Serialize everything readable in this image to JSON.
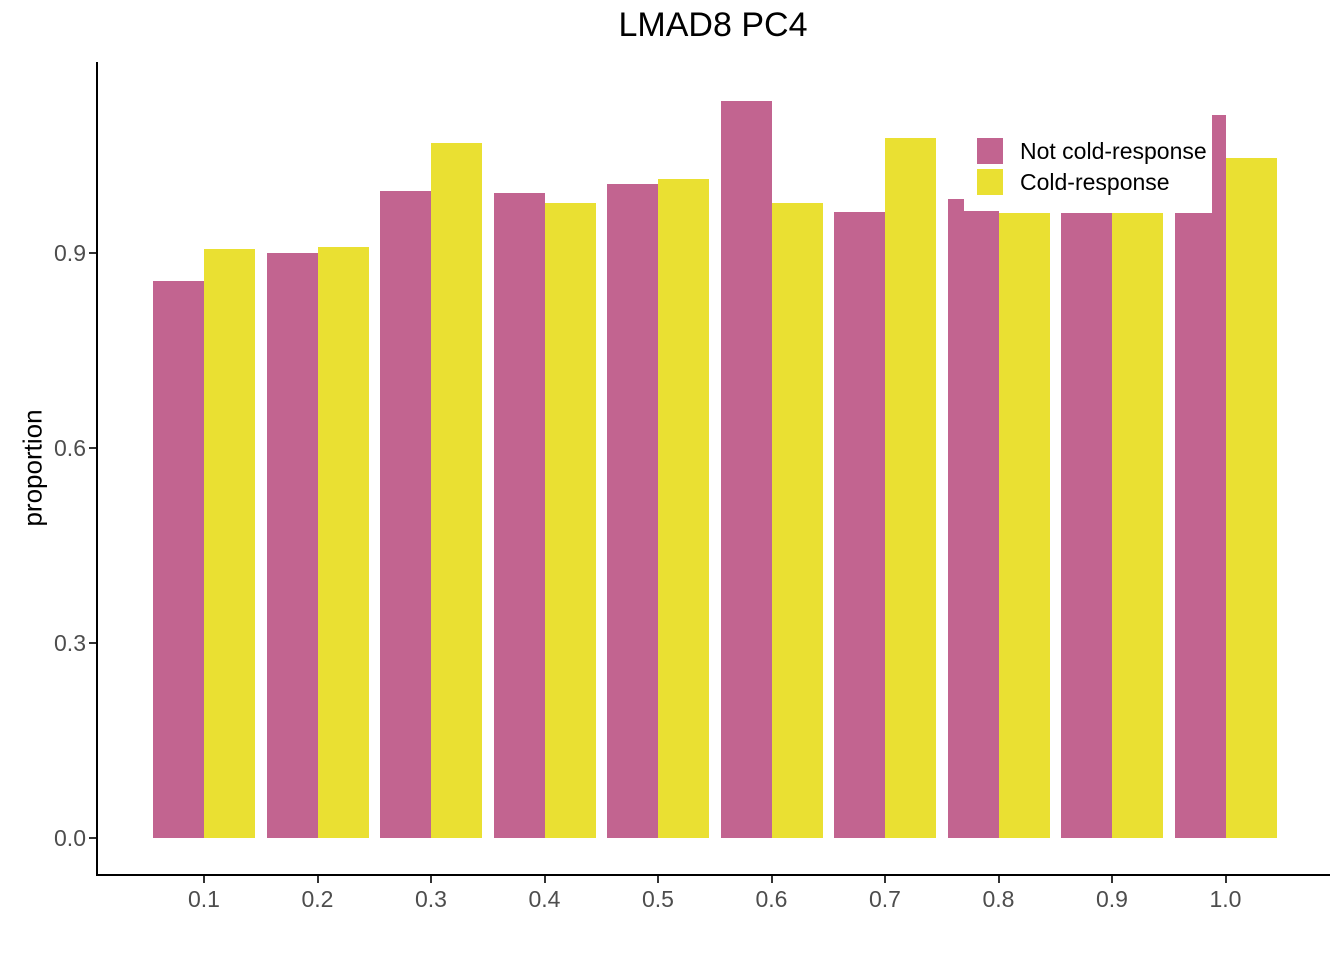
{
  "chart_data": {
    "type": "bar",
    "title": "LMAD8 PC4",
    "xlabel": "",
    "ylabel": "proportion",
    "categories": [
      "0.1",
      "0.2",
      "0.3",
      "0.4",
      "0.5",
      "0.6",
      "0.7",
      "0.8",
      "0.9",
      "1.0"
    ],
    "series": [
      {
        "name": "Not cold-response",
        "color": "#c26490",
        "values": [
          0.857,
          0.9,
          0.995,
          0.992,
          1.006,
          1.134,
          0.963,
          0.965,
          0.962,
          0.962
        ]
      },
      {
        "name": "Cold-response",
        "color": "#eae032",
        "values": [
          0.906,
          0.909,
          1.069,
          0.977,
          1.014,
          0.977,
          1.077,
          0.962,
          0.962,
          1.046
        ]
      }
    ],
    "overlap_bars": [
      {
        "category": "0.8",
        "series": "Not cold-response",
        "value": 0.983,
        "anchor": "left",
        "width_frac": 0.31
      },
      {
        "category": "1.0",
        "series": "Not cold-response",
        "value": 1.112,
        "anchor": "right",
        "width_frac": 0.28
      }
    ],
    "yticks": [
      "0.0",
      "0.3",
      "0.6",
      "0.9"
    ],
    "ylim": [
      0,
      1.19
    ],
    "grid": "off",
    "legend_position": "inside-top-right",
    "axis_color": "#000000",
    "tick_label_color": "#4d4d4d"
  }
}
